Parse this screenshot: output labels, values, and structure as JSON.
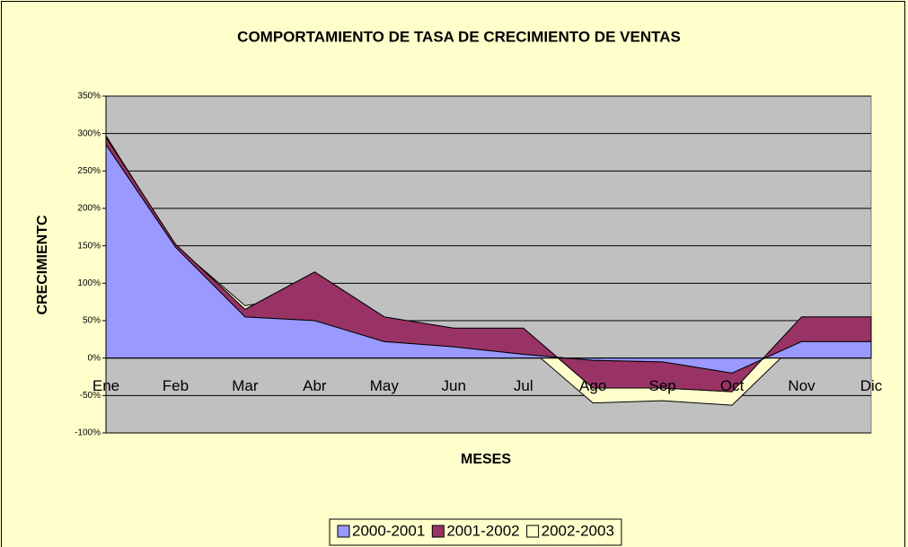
{
  "chart_data": {
    "type": "stacked_area",
    "title": "COMPORTAMIENTO DE TASA DE CRECIMIENTO DE VENTAS",
    "x_label": "MESES",
    "y_label": "CRECIMIENTC",
    "categories": [
      "Ene",
      "Feb",
      "Mar",
      "Abr",
      "May",
      "Jun",
      "Jul",
      "Ago",
      "Sep",
      "Oct",
      "Nov",
      "Dic"
    ],
    "series": [
      {
        "name": "2000-2001",
        "color": "#9999ff",
        "values": [
          285,
          148,
          55,
          50,
          22,
          15,
          5,
          -3,
          -5,
          -20,
          22,
          22
        ]
      },
      {
        "name": "2001-2002",
        "color": "#993366",
        "values": [
          10,
          4,
          10,
          65,
          33,
          25,
          35,
          -37,
          -35,
          -25,
          33,
          33
        ]
      },
      {
        "name": "2002-2003",
        "color": "#ffffcc",
        "values": [
          2,
          -2,
          5,
          -30,
          -33,
          -18,
          -20,
          -20,
          -17,
          -18,
          -28,
          -30
        ]
      }
    ],
    "ylim": [
      -100,
      350
    ],
    "yticks": [
      {
        "value": -100,
        "label": "-100%"
      },
      {
        "value": -50,
        "label": "-50%"
      },
      {
        "value": 0,
        "label": "0%"
      },
      {
        "value": 50,
        "label": "50%"
      },
      {
        "value": 100,
        "label": "100%"
      },
      {
        "value": 150,
        "label": "150%"
      },
      {
        "value": 200,
        "label": "200%"
      },
      {
        "value": 250,
        "label": "250%"
      },
      {
        "value": 300,
        "label": "300%"
      },
      {
        "value": 350,
        "label": "350%"
      }
    ],
    "grid": true,
    "legend": "bottom"
  }
}
